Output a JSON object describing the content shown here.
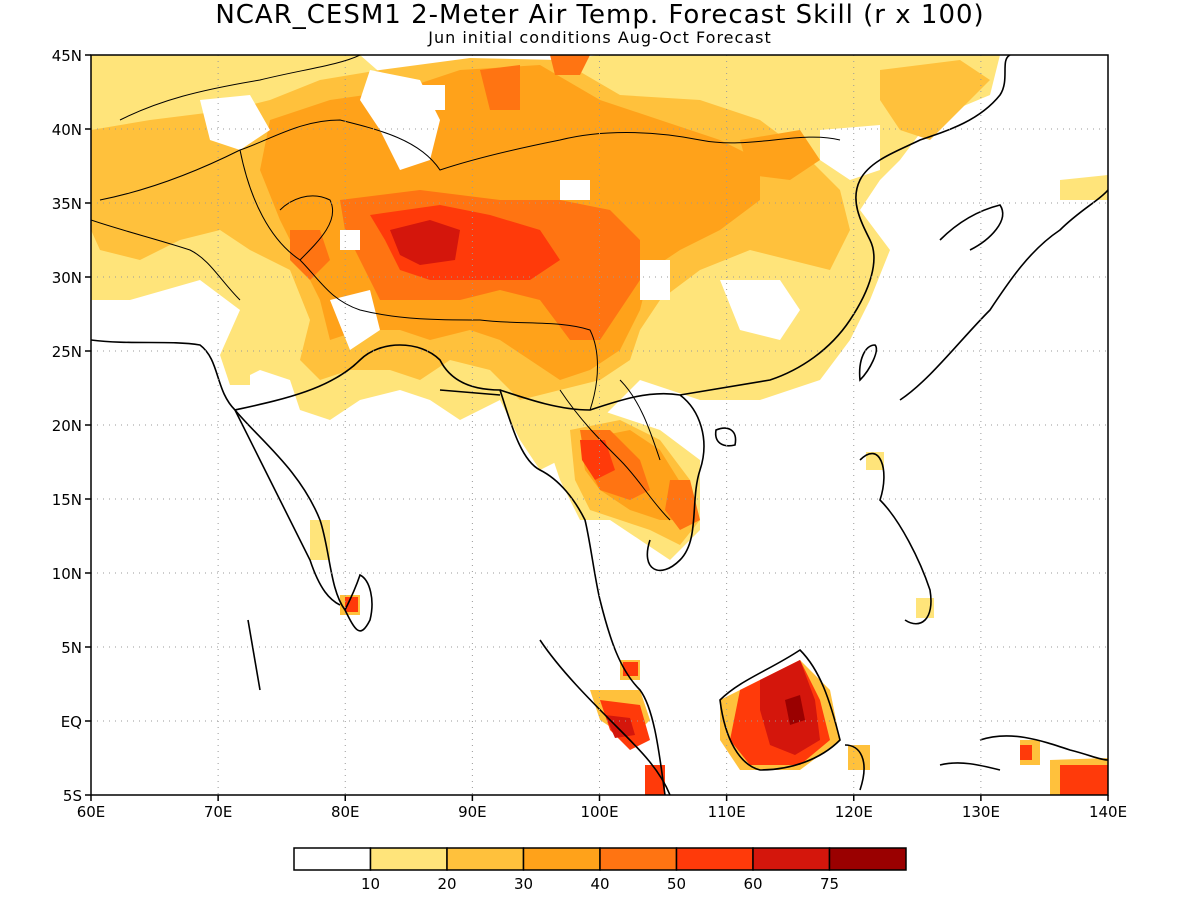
{
  "title": "NCAR_CESM1 2-Meter Air Temp. Forecast Skill (r x 100)",
  "subtitle": "Jun initial conditions  Aug-Oct Forecast",
  "map": {
    "lon_range": [
      60,
      140
    ],
    "lat_range": [
      -5,
      45
    ],
    "lon_ticks": [
      "60E",
      "70E",
      "80E",
      "90E",
      "100E",
      "110E",
      "120E",
      "130E",
      "140E"
    ],
    "lat_ticks": [
      "5S",
      "EQ",
      "5N",
      "10N",
      "15N",
      "20N",
      "25N",
      "30N",
      "35N",
      "40N",
      "45N"
    ],
    "grid": "dotted"
  },
  "colorbar": {
    "labels": [
      "10",
      "20",
      "30",
      "40",
      "50",
      "60",
      "75"
    ],
    "colors": [
      "#ffffff",
      "#ffe47a",
      "#ffc13c",
      "#ffa21a",
      "#ff7412",
      "#ff3a0a",
      "#d4160c",
      "#9a0000"
    ]
  }
}
